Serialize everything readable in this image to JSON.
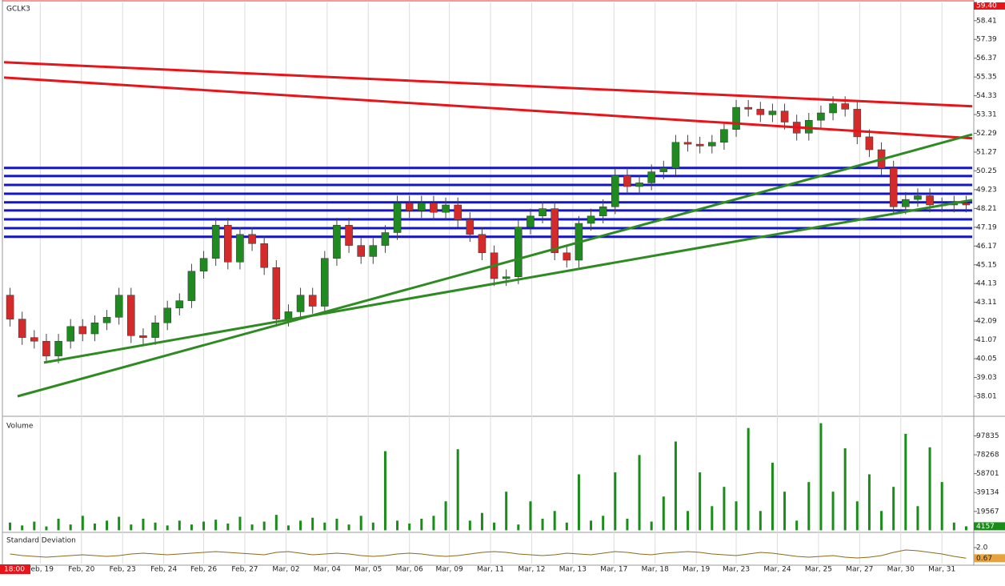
{
  "chart_data": {
    "type": "candlestick",
    "title": "GCLK3",
    "time_label": "18:00",
    "grid": true,
    "up_color": "#1f8a1f",
    "down_color": "#d42a2a",
    "x": [
      0,
      1,
      2,
      3,
      4,
      5,
      6,
      7,
      8,
      9,
      10,
      11,
      12,
      13,
      14,
      15,
      16,
      17,
      18,
      19,
      20,
      21,
      22,
      23,
      24,
      25,
      26,
      27,
      28,
      29,
      30,
      31,
      32,
      33,
      34,
      35,
      36,
      37,
      38,
      39,
      40,
      41,
      42,
      43,
      44,
      45,
      46,
      47,
      48,
      49,
      50,
      51,
      52,
      53,
      54,
      55,
      56,
      57,
      58,
      59,
      60,
      61,
      62,
      63,
      64,
      65,
      66,
      67,
      68,
      69,
      70,
      71,
      72,
      73,
      74,
      75,
      76,
      77,
      78,
      79
    ],
    "xlim": [
      -0.5,
      79.5
    ],
    "xticks": [
      {
        "value": 2.5,
        "label": "Feb, 19"
      },
      {
        "value": 5.9,
        "label": "Feb, 20"
      },
      {
        "value": 9.3,
        "label": "Feb, 23"
      },
      {
        "value": 12.7,
        "label": "Feb, 24"
      },
      {
        "value": 16.0,
        "label": "Feb, 26"
      },
      {
        "value": 19.4,
        "label": "Feb, 27"
      },
      {
        "value": 22.8,
        "label": "Mar, 02"
      },
      {
        "value": 26.2,
        "label": "Mar, 04"
      },
      {
        "value": 29.6,
        "label": "Mar, 05"
      },
      {
        "value": 33.0,
        "label": "Mar, 06"
      },
      {
        "value": 36.3,
        "label": "Mar, 09"
      },
      {
        "value": 39.7,
        "label": "Mar, 11"
      },
      {
        "value": 43.1,
        "label": "Mar, 12"
      },
      {
        "value": 46.5,
        "label": "Mar, 13"
      },
      {
        "value": 49.9,
        "label": "Mar, 17"
      },
      {
        "value": 53.3,
        "label": "Mar, 18"
      },
      {
        "value": 56.7,
        "label": "Mar, 19"
      },
      {
        "value": 60.0,
        "label": "Mar, 23"
      },
      {
        "value": 63.4,
        "label": "Mar, 24"
      },
      {
        "value": 66.8,
        "label": "Mar, 25"
      },
      {
        "value": 70.2,
        "label": "Mar, 27"
      },
      {
        "value": 73.6,
        "label": "Mar, 30"
      },
      {
        "value": 77.0,
        "label": "Mar, 31"
      }
    ],
    "ylim": [
      37.01,
      59.4
    ],
    "yticks": [
      38.01,
      39.03,
      40.05,
      41.07,
      42.09,
      43.11,
      44.13,
      45.15,
      46.17,
      47.19,
      48.21,
      49.23,
      50.25,
      51.27,
      52.29,
      53.31,
      54.33,
      55.35,
      56.37,
      57.39,
      58.41,
      {
        "value": 59.4,
        "label": "59.40"
      }
    ],
    "open": [
      43.5,
      42.2,
      41.2,
      41,
      40.2,
      41,
      41.8,
      41.4,
      42,
      42.3,
      43.5,
      41.3,
      41.2,
      42,
      42.8,
      43.2,
      44.8,
      45.5,
      47.3,
      45.3,
      46.8,
      46.3,
      45,
      42.2,
      42.6,
      43.5,
      42.9,
      45.5,
      47.3,
      46.2,
      45.6,
      46.2,
      46.9,
      48.5,
      48.1,
      48.5,
      48,
      48.4,
      47.6,
      46.8,
      45.8,
      44.4,
      44.5,
      47.2,
      47.8,
      48.2,
      45.8,
      45.4,
      47.4,
      47.8,
      48.3,
      50,
      49.4,
      49.6,
      50.2,
      50.4,
      51.8,
      51.7,
      51.6,
      51.8,
      52.5,
      53.7,
      53.6,
      53.3,
      53.5,
      52.9,
      52.3,
      53,
      53.4,
      53.9,
      53.6,
      52.1,
      51.4,
      50.4,
      48.3,
      48.7,
      48.9,
      48.4,
      48.4,
      48.5
    ],
    "high": [
      43.9,
      42.6,
      41.6,
      41.4,
      41.4,
      42.2,
      42.2,
      42.4,
      42.7,
      43.9,
      43.9,
      41.7,
      42.4,
      43.2,
      43.6,
      45.2,
      45.9,
      47.7,
      47.7,
      47.2,
      47.2,
      46.7,
      45.4,
      43,
      43.9,
      43.9,
      45.9,
      47.7,
      47.7,
      46.6,
      46.6,
      47.3,
      48.9,
      48.9,
      48.9,
      48.9,
      48.8,
      48.8,
      48,
      47.2,
      46.2,
      44.9,
      47.6,
      48.2,
      48.6,
      48.6,
      46.2,
      47.8,
      48.2,
      48.7,
      50.4,
      50.4,
      50,
      50.6,
      50.8,
      52.2,
      52.2,
      52.1,
      52.2,
      52.9,
      54.1,
      54.1,
      54,
      53.9,
      53.9,
      53.3,
      53.4,
      53.8,
      54.3,
      54.3,
      54,
      52.5,
      51.8,
      50.8,
      49.1,
      49.3,
      49.3,
      48.8,
      48.9,
      48.9
    ],
    "low": [
      41.8,
      40.8,
      40.6,
      39.8,
      39.8,
      40.6,
      41,
      41,
      41.6,
      41.9,
      40.9,
      40.8,
      40.8,
      41.6,
      42.4,
      42.8,
      44.4,
      45.1,
      44.9,
      44.9,
      45.9,
      44.6,
      41.8,
      41.8,
      42.2,
      42.5,
      42.5,
      45.1,
      45.8,
      45.2,
      45.2,
      45.8,
      46.5,
      47.7,
      47.7,
      47.6,
      47.6,
      47.2,
      46.4,
      45.4,
      44,
      44,
      44.1,
      46.8,
      47.4,
      45.4,
      45,
      45,
      47,
      47.4,
      47.9,
      49,
      49,
      49.2,
      49.8,
      50,
      51.3,
      51.2,
      51.2,
      51.4,
      52.1,
      53.2,
      52.9,
      52.9,
      52.5,
      51.9,
      51.9,
      52.6,
      53,
      53.2,
      51.7,
      51,
      50,
      47.9,
      47.9,
      48.3,
      48,
      48,
      48,
      48
    ],
    "close": [
      42.2,
      41.2,
      41,
      40.2,
      41,
      41.8,
      41.4,
      42,
      42.3,
      43.5,
      41.3,
      41.2,
      42,
      42.8,
      43.2,
      44.8,
      45.5,
      47.3,
      45.3,
      46.8,
      46.3,
      45,
      42.2,
      42.6,
      43.5,
      42.9,
      45.5,
      47.3,
      46.2,
      45.6,
      46.2,
      46.9,
      48.5,
      48.1,
      48.5,
      48,
      48.4,
      47.6,
      46.8,
      45.8,
      44.4,
      44.5,
      47.2,
      47.8,
      48.2,
      45.8,
      45.4,
      47.4,
      47.8,
      48.3,
      50,
      49.4,
      49.6,
      50.2,
      50.4,
      51.8,
      51.7,
      51.6,
      51.8,
      52.5,
      53.7,
      53.6,
      53.3,
      53.5,
      52.9,
      52.3,
      53,
      53.4,
      53.9,
      53.6,
      52.1,
      51.4,
      50.4,
      48.3,
      48.7,
      48.9,
      48.4,
      48.4,
      48.5,
      48.4
    ],
    "trendlines": [
      {
        "color": "#e8141a",
        "x": [
          -0.5,
          79.5
        ],
        "y": [
          56.15,
          53.76
        ]
      },
      {
        "color": "#e8141a",
        "x": [
          -0.5,
          79.5
        ],
        "y": [
          55.32,
          52.02
        ]
      },
      {
        "color": "#2e8b22",
        "x": [
          0.62,
          79.5
        ],
        "y": [
          38.01,
          52.23
        ]
      },
      {
        "color": "#2e8b22",
        "x": [
          2.8,
          79.5
        ],
        "y": [
          39.84,
          48.67
        ]
      }
    ],
    "hlines": {
      "color": "#1414c8",
      "values": [
        50.41,
        49.97,
        49.49,
        49.01,
        48.54,
        48.1,
        47.62,
        47.14,
        46.67
      ]
    },
    "volume": {
      "title": "Volume",
      "color": "#1a8c1a",
      "ylim": [
        0,
        114000
      ],
      "yticks": [
        19567,
        39134,
        58701,
        78268,
        97835
      ],
      "values": [
        8000,
        5000,
        9000,
        4000,
        12000,
        6000,
        15000,
        7000,
        10000,
        14000,
        6000,
        12000,
        8000,
        5000,
        10000,
        6000,
        9000,
        11000,
        7000,
        14000,
        6000,
        9000,
        16000,
        5000,
        10000,
        13000,
        8000,
        12000,
        6000,
        15000,
        8000,
        82000,
        10000,
        7000,
        12000,
        15000,
        30000,
        84000,
        10000,
        18000,
        8000,
        40000,
        6000,
        30000,
        12000,
        20000,
        8000,
        58000,
        10000,
        15000,
        60000,
        12000,
        78000,
        9000,
        35000,
        92000,
        20000,
        60000,
        25000,
        45000,
        30000,
        106000,
        20000,
        70000,
        40000,
        10000,
        50000,
        111000,
        40000,
        85000,
        30000,
        58000,
        20000,
        45000,
        100000,
        25000,
        86000,
        50000,
        8000,
        4157
      ]
    },
    "stddev": {
      "title": "Standard Deviation",
      "color": "#8b6a1a",
      "ylim": [
        0,
        3.6
      ],
      "yticks": [
        {
          "value": 2,
          "label": "2.0"
        }
      ],
      "values": [
        1.2,
        1.0,
        0.9,
        0.8,
        0.9,
        1.0,
        1.1,
        1.0,
        0.9,
        1.0,
        1.2,
        1.3,
        1.2,
        1.1,
        1.2,
        1.3,
        1.4,
        1.5,
        1.4,
        1.3,
        1.2,
        1.1,
        1.4,
        1.5,
        1.3,
        1.1,
        1.2,
        1.3,
        1.2,
        1.0,
        0.9,
        1.0,
        1.2,
        1.3,
        1.2,
        1.0,
        0.9,
        1.0,
        1.2,
        1.4,
        1.5,
        1.4,
        1.2,
        1.1,
        1.0,
        1.1,
        1.3,
        1.2,
        1.1,
        1.3,
        1.5,
        1.4,
        1.2,
        1.1,
        1.3,
        1.4,
        1.5,
        1.4,
        1.2,
        1.1,
        1.0,
        1.2,
        1.4,
        1.3,
        1.1,
        0.9,
        0.8,
        0.9,
        1.0,
        0.8,
        0.7,
        0.8,
        1.0,
        1.4,
        1.7,
        1.6,
        1.4,
        1.2,
        0.9,
        0.67
      ]
    }
  }
}
